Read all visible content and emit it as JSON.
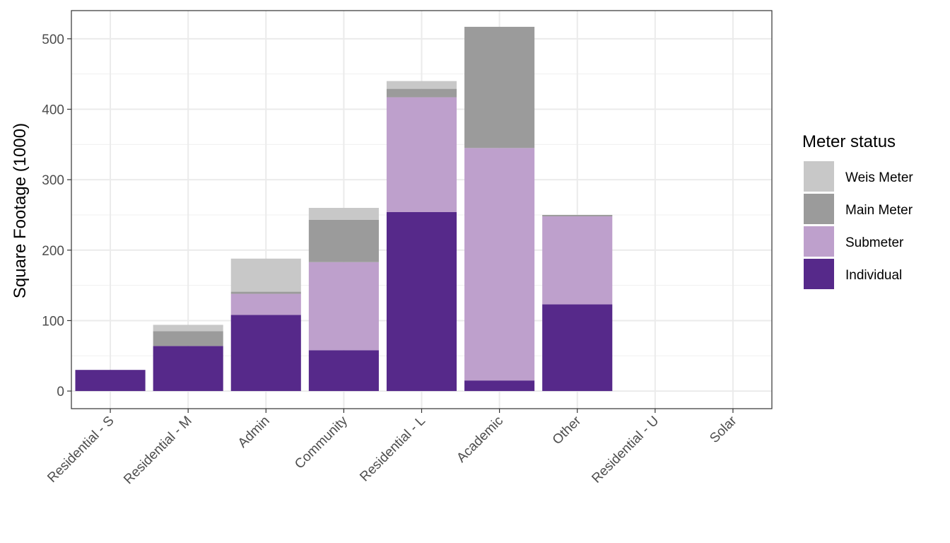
{
  "chart_data": {
    "type": "bar",
    "stacked": true,
    "title": "",
    "xlabel": "",
    "ylabel": "Square Footage (1000)",
    "ylim": [
      -25,
      540
    ],
    "yticks": [
      0,
      100,
      200,
      300,
      400,
      500
    ],
    "y_tick_labels": [
      "0",
      "100",
      "200",
      "300",
      "400",
      "500"
    ],
    "grid": true,
    "categories": [
      "Residential - S",
      "Residential - M",
      "Admin",
      "Community",
      "Residential - L",
      "Academic",
      "Other",
      "Residential - U",
      "Solar"
    ],
    "series": [
      {
        "name": "Individual",
        "color": "#56298a",
        "values": [
          30,
          64,
          108,
          58,
          254,
          15,
          123,
          0,
          0
        ]
      },
      {
        "name": "Submeter",
        "color": "#bea0cc",
        "values": [
          0,
          0,
          30,
          125,
          163,
          330,
          125,
          0,
          0
        ]
      },
      {
        "name": "Main Meter",
        "color": "#9b9b9b",
        "values": [
          0,
          21,
          3,
          60,
          12,
          172,
          2,
          0,
          0
        ]
      },
      {
        "name": "Weis Meter",
        "color": "#c8c8c8",
        "values": [
          0,
          9,
          47,
          17,
          11,
          0,
          0,
          0,
          0
        ]
      }
    ],
    "legend": {
      "title": "Meter status",
      "position": "right",
      "items": [
        "Weis Meter",
        "Main Meter",
        "Submeter",
        "Individual"
      ]
    }
  }
}
